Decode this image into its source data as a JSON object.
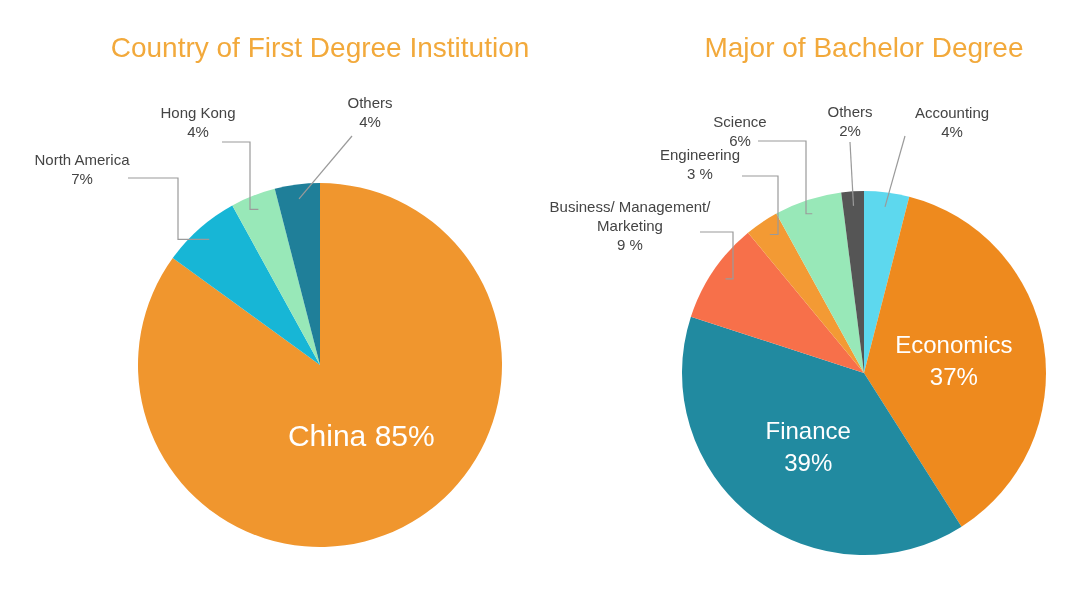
{
  "chart_data": [
    {
      "type": "pie",
      "title": "Country of First Degree Institution",
      "categories": [
        "China",
        "North America",
        "Hong Kong",
        "Others"
      ],
      "values": [
        85,
        7,
        4,
        4
      ],
      "value_labels": [
        "85%",
        "7%",
        "4%",
        "4%"
      ],
      "colors": [
        "#f0962e",
        "#17b6d6",
        "#98e8b8",
        "#1f7f99"
      ]
    },
    {
      "type": "pie",
      "title": "Major of Bachelor Degree",
      "categories": [
        "Accounting",
        "Economics",
        "Finance",
        "Business/ Management/ Marketing",
        "Engineering",
        "Science",
        "Others"
      ],
      "values": [
        4,
        37,
        39,
        9,
        3,
        6,
        2
      ],
      "value_labels": [
        "4%",
        "37%",
        "39%",
        "9 %",
        "3 %",
        "6%",
        "2%"
      ],
      "colors": [
        "#5dd8ee",
        "#ee8a1e",
        "#218aa0",
        "#f7704a",
        "#f39a34",
        "#98e8b8",
        "#555555"
      ]
    }
  ]
}
